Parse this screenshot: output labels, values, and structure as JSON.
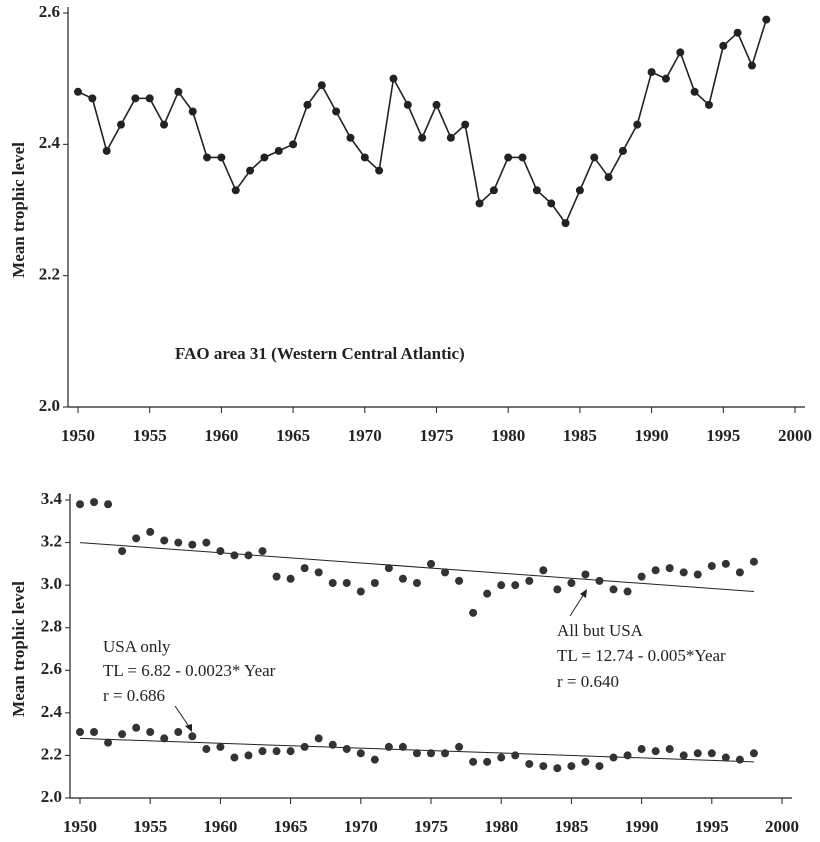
{
  "chart_data": [
    {
      "type": "line",
      "y_label": "Mean trophic level",
      "annotations": [
        "FAO area 31 (Western Central Atlantic)"
      ],
      "x": [
        1950,
        1951,
        1952,
        1953,
        1954,
        1955,
        1956,
        1957,
        1958,
        1959,
        1960,
        1961,
        1962,
        1963,
        1964,
        1965,
        1966,
        1967,
        1968,
        1969,
        1970,
        1971,
        1972,
        1973,
        1974,
        1975,
        1976,
        1977,
        1978,
        1979,
        1980,
        1981,
        1982,
        1983,
        1984,
        1985,
        1986,
        1987,
        1988,
        1989,
        1990,
        1991,
        1992,
        1993,
        1994,
        1995,
        1996,
        1997,
        1998
      ],
      "values": [
        2.48,
        2.47,
        2.39,
        2.43,
        2.47,
        2.47,
        2.43,
        2.48,
        2.45,
        2.38,
        2.38,
        2.33,
        2.36,
        2.38,
        2.39,
        2.4,
        2.46,
        2.49,
        2.45,
        2.41,
        2.38,
        2.36,
        2.5,
        2.46,
        2.41,
        2.46,
        2.41,
        2.43,
        2.31,
        2.33,
        2.38,
        2.38,
        2.33,
        2.31,
        2.28,
        2.33,
        2.38,
        2.35,
        2.39,
        2.43,
        2.51,
        2.5,
        2.54,
        2.48,
        2.46,
        2.55,
        2.57,
        2.52,
        2.59
      ],
      "color": "#222222",
      "xlim": [
        1950,
        2000
      ],
      "xticks": [
        1950,
        1955,
        1960,
        1965,
        1970,
        1975,
        1980,
        1985,
        1990,
        1995,
        2000
      ],
      "ylim": [
        2.0,
        2.6
      ],
      "yticks": [
        {
          "value": 2,
          "label": "2.0"
        },
        2.2,
        2.4,
        2.6
      ]
    },
    {
      "type": "scatter",
      "y_label": "Mean trophic level",
      "x": [
        1950,
        1951,
        1952,
        1953,
        1954,
        1955,
        1956,
        1957,
        1958,
        1959,
        1960,
        1961,
        1962,
        1963,
        1964,
        1965,
        1966,
        1967,
        1968,
        1969,
        1970,
        1971,
        1972,
        1973,
        1974,
        1975,
        1976,
        1977,
        1978,
        1979,
        1980,
        1981,
        1982,
        1983,
        1984,
        1985,
        1986,
        1987,
        1988,
        1989,
        1990,
        1991,
        1992,
        1993,
        1994,
        1995,
        1996,
        1997,
        1998
      ],
      "series": [
        {
          "name": "USA only",
          "equation": "TL = 6.82 - 0.0023* Year",
          "r_label": "r = 0.686",
          "color": "#333333",
          "values": [
            2.31,
            2.31,
            2.26,
            2.3,
            2.33,
            2.31,
            2.28,
            2.31,
            2.29,
            2.23,
            2.24,
            2.19,
            2.2,
            2.22,
            2.22,
            2.22,
            2.24,
            2.28,
            2.25,
            2.23,
            2.21,
            2.18,
            2.24,
            2.24,
            2.21,
            2.21,
            2.21,
            2.24,
            2.17,
            2.17,
            2.19,
            2.2,
            2.16,
            2.15,
            2.14,
            2.15,
            2.17,
            2.15,
            2.19,
            2.2,
            2.23,
            2.22,
            2.23,
            2.2,
            2.21,
            2.21,
            2.19,
            2.18,
            2.21
          ],
          "trend": {
            "x": [
              1950,
              1998
            ],
            "values": [
              2.28,
              2.17
            ]
          }
        },
        {
          "name": "All but USA",
          "equation": "TL = 12.74 - 0.005*Year",
          "r_label": "r = 0.640",
          "color": "#333333",
          "values": [
            3.38,
            3.39,
            3.38,
            3.16,
            3.22,
            3.25,
            3.21,
            3.2,
            3.19,
            3.2,
            3.16,
            3.14,
            3.14,
            3.16,
            3.04,
            3.03,
            3.08,
            3.06,
            3.01,
            3.01,
            2.97,
            3.01,
            3.08,
            3.03,
            3.01,
            3.1,
            3.06,
            3.02,
            2.87,
            2.96,
            3.0,
            3.0,
            3.02,
            3.07,
            2.98,
            3.01,
            3.05,
            3.02,
            2.98,
            2.97,
            3.04,
            3.07,
            3.08,
            3.06,
            3.05,
            3.09,
            3.1,
            3.06,
            3.11
          ],
          "trend": {
            "x": [
              1950,
              1998
            ],
            "values": [
              3.2,
              2.97
            ]
          }
        }
      ],
      "xlim": [
        1950,
        2000
      ],
      "xticks": [
        1950,
        1955,
        1960,
        1965,
        1970,
        1975,
        1980,
        1985,
        1990,
        1995,
        2000
      ],
      "ylim": [
        2.0,
        3.4
      ],
      "yticks": [
        {
          "value": 2,
          "label": "2.0"
        },
        2.2,
        2.4,
        2.6,
        2.8,
        {
          "value": 3,
          "label": "3.0"
        },
        3.2,
        3.4
      ]
    }
  ]
}
